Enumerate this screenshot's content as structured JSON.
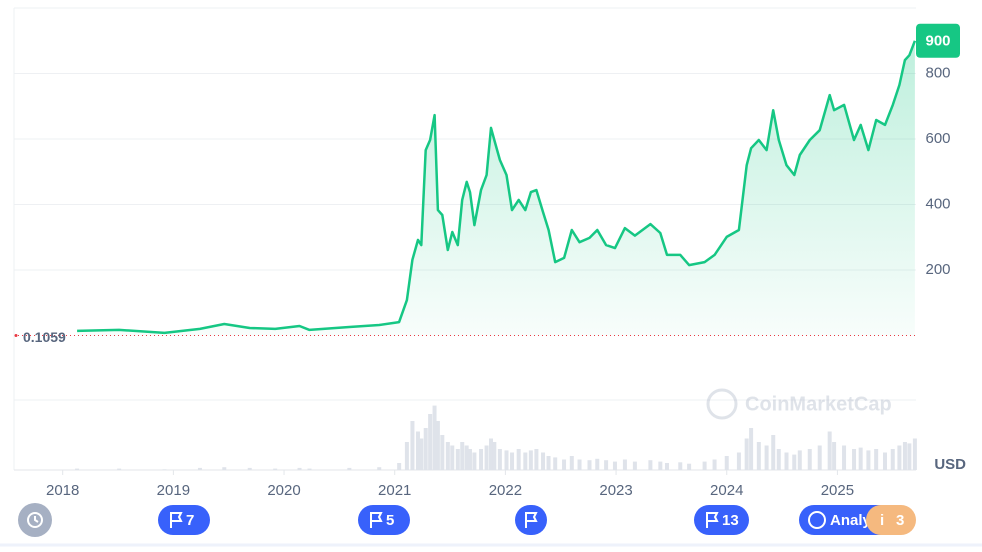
{
  "chart_data": {
    "type": "line",
    "x": [
      2018.13,
      2018.51,
      2018.92,
      2019.24,
      2019.46,
      2019.69,
      2019.92,
      2020.14,
      2020.23,
      2020.59,
      2020.86,
      2021.04,
      2021.11,
      2021.16,
      2021.21,
      2021.24,
      2021.28,
      2021.32,
      2021.36,
      2021.39,
      2021.43,
      2021.48,
      2021.52,
      2021.57,
      2021.61,
      2021.65,
      2021.68,
      2021.72,
      2021.78,
      2021.83,
      2021.87,
      2021.9,
      2021.95,
      2022.01,
      2022.06,
      2022.12,
      2022.18,
      2022.23,
      2022.28,
      2022.34,
      2022.39,
      2022.45,
      2022.53,
      2022.6,
      2022.67,
      2022.76,
      2022.83,
      2022.91,
      2022.99,
      2023.08,
      2023.17,
      2023.31,
      2023.4,
      2023.46,
      2023.58,
      2023.66,
      2023.8,
      2023.89,
      2024.0,
      2024.11,
      2024.18,
      2024.22,
      2024.29,
      2024.36,
      2024.42,
      2024.47,
      2024.54,
      2024.61,
      2024.66,
      2024.75,
      2024.84,
      2024.93,
      2024.97,
      2025.06,
      2025.15,
      2025.21,
      2025.28,
      2025.35,
      2025.43,
      2025.5,
      2025.56,
      2025.61,
      2025.65,
      2025.7
    ],
    "values": [
      14,
      17,
      8,
      20,
      35,
      23,
      20,
      29,
      17,
      26,
      32,
      41,
      108,
      231,
      292,
      276,
      566,
      597,
      673,
      383,
      368,
      261,
      316,
      276,
      414,
      469,
      438,
      337,
      444,
      490,
      634,
      597,
      536,
      490,
      383,
      414,
      383,
      438,
      444,
      377,
      322,
      224,
      237,
      322,
      285,
      298,
      322,
      276,
      267,
      328,
      305,
      340,
      313,
      246,
      246,
      215,
      224,
      246,
      301,
      322,
      520,
      572,
      597,
      566,
      688,
      597,
      520,
      490,
      551,
      597,
      627,
      734,
      688,
      704,
      597,
      643,
      566,
      658,
      643,
      704,
      765,
      841,
      856,
      900
    ],
    "volume": [
      2,
      2,
      1,
      3,
      4,
      3,
      2,
      3,
      2,
      3,
      4,
      10,
      40,
      70,
      55,
      45,
      60,
      80,
      92,
      70,
      50,
      40,
      35,
      30,
      40,
      35,
      30,
      25,
      30,
      35,
      45,
      40,
      30,
      28,
      25,
      30,
      25,
      28,
      30,
      25,
      20,
      18,
      15,
      20,
      15,
      14,
      16,
      14,
      12,
      15,
      12,
      14,
      12,
      10,
      11,
      9,
      12,
      15,
      20,
      25,
      45,
      60,
      40,
      35,
      50,
      30,
      25,
      22,
      28,
      30,
      35,
      55,
      40,
      35,
      30,
      32,
      28,
      30,
      25,
      30,
      35,
      40,
      38,
      45
    ],
    "volume_lim": [
      0,
      100
    ],
    "color": "#16c784",
    "xlim": [
      2017.56,
      2025.71
    ],
    "xticks": [
      2018,
      2019,
      2020,
      2021,
      2022,
      2023,
      2024,
      2025
    ],
    "ylim": [
      0,
      1000
    ],
    "yticks": [
      200,
      400,
      600,
      800
    ],
    "start_price": 0.1059,
    "last_price": 900,
    "currency": "USD",
    "grid": true
  },
  "ui": {
    "watermark": "CoinMarketCap",
    "event_counts": [
      7,
      5,
      13
    ],
    "analysis_label": "Analy",
    "info_icon": "i",
    "info_count": 3
  }
}
